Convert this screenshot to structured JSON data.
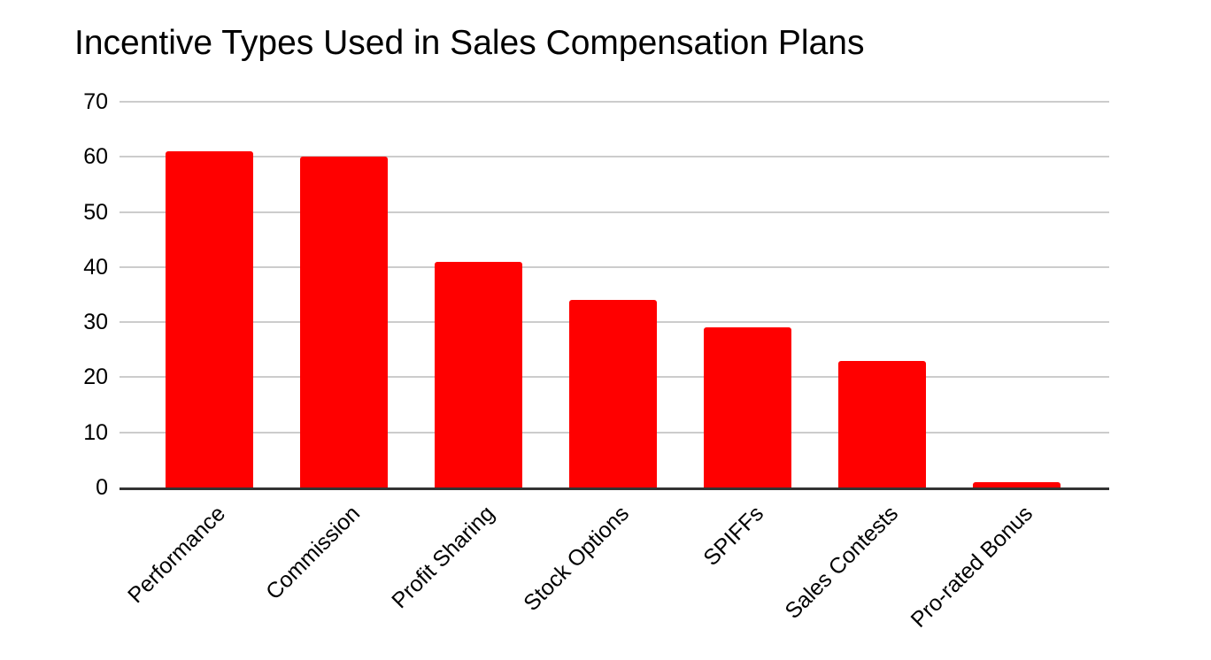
{
  "chart_data": {
    "type": "bar",
    "title": "Incentive Types Used in Sales Compensation Plans",
    "categories": [
      "Performance",
      "Commission",
      "Profit Sharing",
      "Stock Options",
      "SPIFFs",
      "Sales Contests",
      "Pro-rated Bonus"
    ],
    "values": [
      61,
      60,
      41,
      34,
      29,
      23,
      1
    ],
    "xlabel": "",
    "ylabel": "",
    "ylim": [
      0,
      70
    ],
    "yticks": [
      0,
      10,
      20,
      30,
      40,
      50,
      60,
      70
    ],
    "grid": true,
    "legend": false,
    "x_label_rotation_deg": -45
  },
  "colors": {
    "background": "#ffffff",
    "bar": "#ff0000",
    "gridline": "#cccccc",
    "axis_line": "#333333",
    "title_text": "#000000",
    "axis_text": "#000000"
  }
}
